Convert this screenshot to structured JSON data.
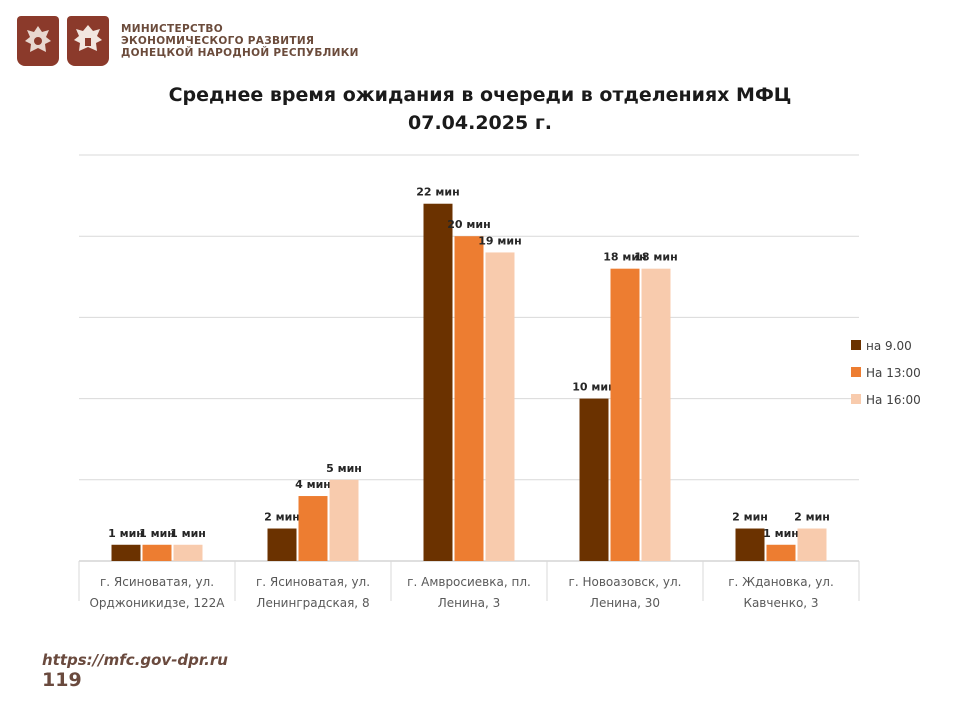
{
  "header": {
    "ministry_lines": [
      "МИНИСТЕРСТВО",
      "ЭКОНОМИЧЕСКОГО РАЗВИТИЯ",
      "ДОНЕЦКОЙ НАРОДНОЙ РЕСПУБЛИКИ"
    ],
    "logos": [
      "russia-emblem-icon",
      "dpr-emblem-icon"
    ]
  },
  "footer": {
    "url": "https://mfc.gov-dpr.ru",
    "page_number": "119"
  },
  "chart_data": {
    "type": "bar",
    "title": "Среднее время ожидания в очереди в отделениях МФЦ",
    "subtitle": "07.04.2025   г.",
    "value_suffix": " мин",
    "ylim": [
      0,
      25
    ],
    "grid": true,
    "legend_position": "right",
    "categories": [
      [
        "г. Ясиноватая, ул.",
        "Орджоникидзе, 122А"
      ],
      [
        "г. Ясиноватая, ул.",
        "Ленинградская, 8"
      ],
      [
        "г. Амвросиевка, пл.",
        "Ленина, 3"
      ],
      [
        "г. Новоазовск, ул.",
        "Ленина, 30"
      ],
      [
        "г. Ждановка, ул.",
        "Кавченко, 3"
      ]
    ],
    "series": [
      {
        "name": "на 9.00",
        "color": "#6b3200",
        "values": [
          1,
          2,
          22,
          10,
          2
        ]
      },
      {
        "name": "На 13:00",
        "color": "#ed7d31",
        "values": [
          1,
          4,
          20,
          18,
          1
        ]
      },
      {
        "name": "На 16:00",
        "color": "#f8cbad",
        "values": [
          1,
          5,
          19,
          18,
          2
        ]
      }
    ]
  }
}
